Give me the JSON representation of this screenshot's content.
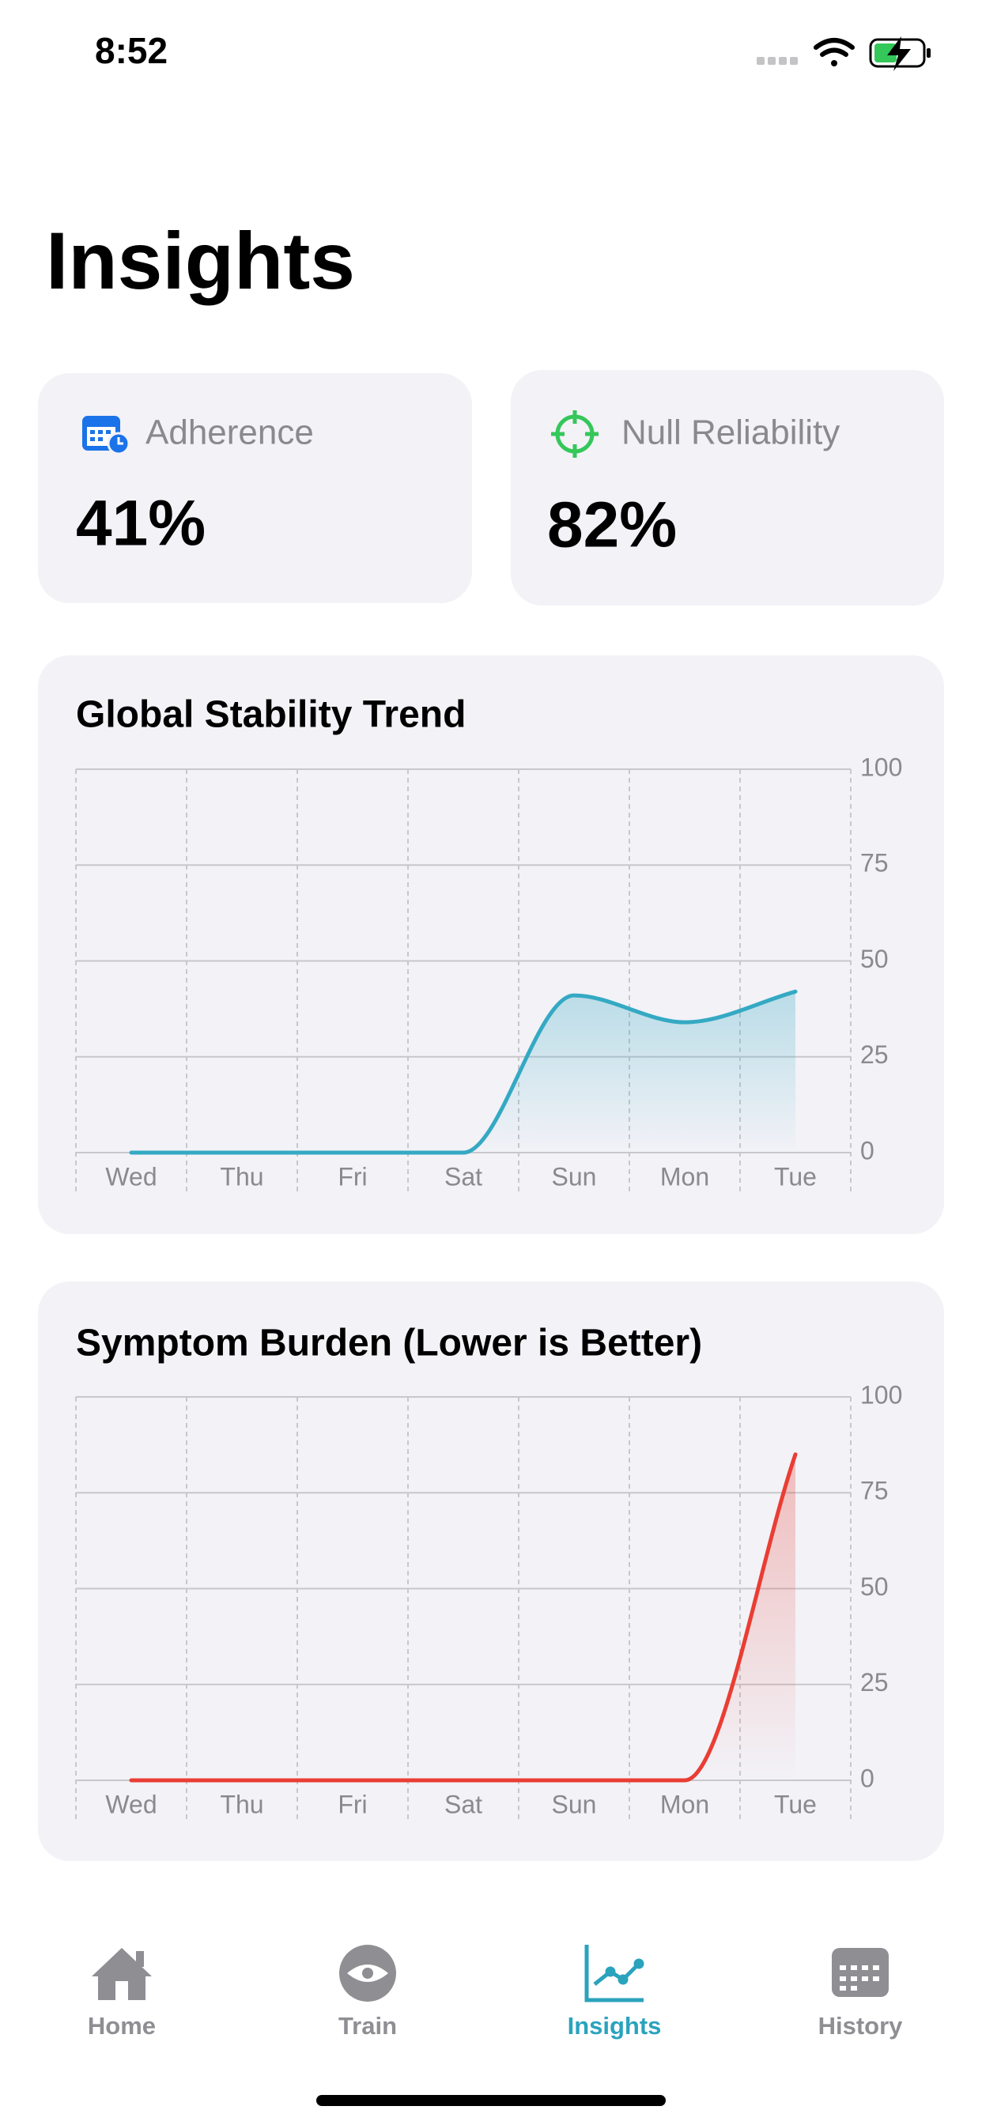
{
  "status_bar": {
    "time": "8:52"
  },
  "header": {
    "title": "Insights"
  },
  "metrics": [
    {
      "label": "Adherence",
      "value": "41%"
    },
    {
      "label": "Null Reliability",
      "value": "82%"
    }
  ],
  "chart_data": [
    {
      "type": "line",
      "title": "Global Stability Trend",
      "categories": [
        "Wed",
        "Thu",
        "Fri",
        "Sat",
        "Sun",
        "Mon",
        "Tue"
      ],
      "values": [
        0,
        0,
        0,
        0,
        41,
        34,
        42
      ],
      "color": "#35a9c3",
      "ylim": [
        0,
        100
      ],
      "yticks": [
        0,
        25,
        50,
        75,
        100
      ],
      "grid": true
    },
    {
      "type": "line",
      "title": "Symptom Burden (Lower is Better)",
      "categories": [
        "Wed",
        "Thu",
        "Fri",
        "Sat",
        "Sun",
        "Mon",
        "Tue"
      ],
      "values": [
        0,
        0,
        0,
        0,
        0,
        0,
        85
      ],
      "color": "#ea3d33",
      "ylim": [
        0,
        100
      ],
      "yticks": [
        0,
        25,
        50,
        75,
        100
      ],
      "grid": true
    }
  ],
  "tab_bar": {
    "tabs": [
      {
        "label": "Home",
        "active": false
      },
      {
        "label": "Train",
        "active": false
      },
      {
        "label": "Insights",
        "active": true
      },
      {
        "label": "History",
        "active": false
      }
    ],
    "active_color": "#2aa3bd",
    "inactive_color": "#8e8e93"
  }
}
